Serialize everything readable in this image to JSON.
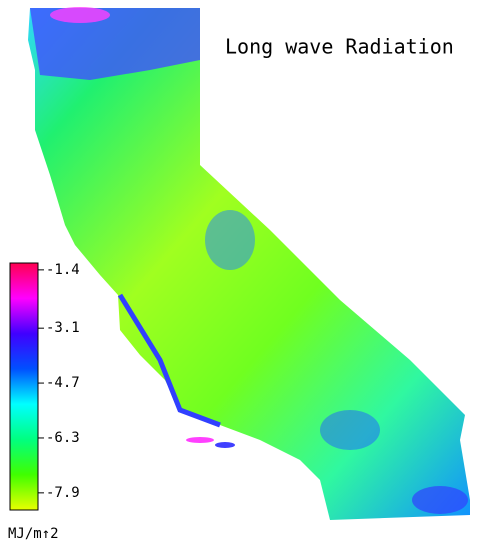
{
  "title": "Long wave Radiation",
  "colorbar": {
    "lim": [
      -8.4,
      -1.2
    ],
    "ticks": [
      -1.4,
      -3.1,
      -4.7,
      -6.3,
      -7.9
    ],
    "unit": "MJ/m↑2",
    "colors": [
      "#e8ff00",
      "#40ff00",
      "#00ff80",
      "#00ffff",
      "#0050ff",
      "#4000ff",
      "#ff00ff",
      "#ff0050"
    ]
  }
}
